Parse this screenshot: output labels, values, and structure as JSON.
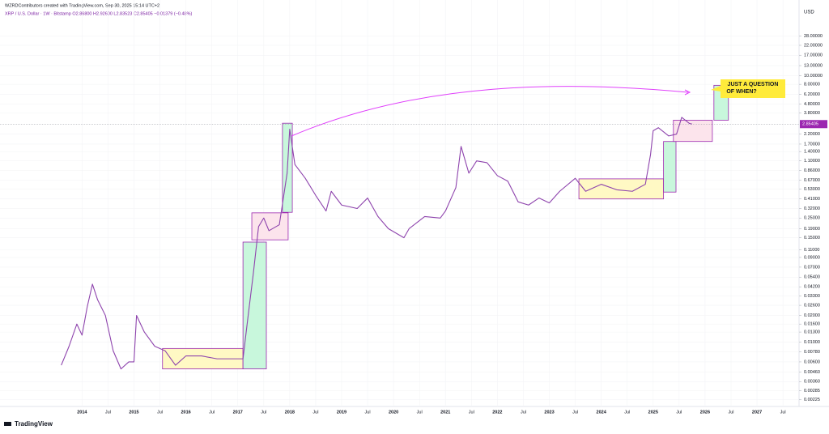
{
  "header": {
    "author": "WZRDContributors created with TradingView.com, Sep 30, 2025 15:14 UTC+2",
    "symbol": "XRP / U.S. Dollar · 1W · Bitstamp  O2.86800 H2.92600 L2.83523 C2.85405 −0.01379 (−0.48%)",
    "currency": "USD",
    "logo": "TradingView"
  },
  "chart_data": {
    "type": "line",
    "log_scale": true,
    "grid": true,
    "color": "#8e44ad",
    "x": [
      2013.6,
      2013.75,
      2013.9,
      2014.0,
      2014.1,
      2014.2,
      2014.3,
      2014.45,
      2014.6,
      2014.75,
      2014.9,
      2015.0,
      2015.05,
      2015.2,
      2015.4,
      2015.6,
      2015.8,
      2016.0,
      2016.3,
      2016.6,
      2016.9,
      2017.1,
      2017.2,
      2017.3,
      2017.4,
      2017.5,
      2017.6,
      2017.8,
      2017.95,
      2018.0,
      2018.1,
      2018.3,
      2018.5,
      2018.7,
      2018.8,
      2019.0,
      2019.3,
      2019.5,
      2019.7,
      2019.9,
      2020.2,
      2020.3,
      2020.6,
      2020.9,
      2021.0,
      2021.2,
      2021.3,
      2021.45,
      2021.6,
      2021.8,
      2022.0,
      2022.2,
      2022.4,
      2022.6,
      2022.8,
      2023.0,
      2023.2,
      2023.5,
      2023.7,
      2024.0,
      2024.3,
      2024.6,
      2024.85,
      2024.95,
      2025.0,
      2025.1,
      2025.3,
      2025.45,
      2025.55,
      2025.7,
      2025.75
    ],
    "values": [
      0.0055,
      0.009,
      0.016,
      0.012,
      0.025,
      0.045,
      0.03,
      0.02,
      0.008,
      0.005,
      0.006,
      0.006,
      0.02,
      0.013,
      0.009,
      0.008,
      0.0055,
      0.007,
      0.007,
      0.0065,
      0.0065,
      0.0065,
      0.02,
      0.06,
      0.2,
      0.25,
      0.18,
      0.21,
      0.8,
      2.5,
      1.0,
      0.7,
      0.45,
      0.3,
      0.5,
      0.35,
      0.32,
      0.42,
      0.26,
      0.19,
      0.15,
      0.19,
      0.26,
      0.25,
      0.3,
      0.55,
      1.6,
      0.8,
      1.1,
      1.05,
      0.75,
      0.65,
      0.38,
      0.35,
      0.42,
      0.37,
      0.5,
      0.7,
      0.5,
      0.6,
      0.52,
      0.5,
      0.6,
      1.3,
      2.4,
      2.6,
      2.1,
      2.2,
      3.4,
      2.9,
      2.85
    ],
    "last_price": 2.85405,
    "boxes": [
      {
        "x0": 2015.55,
        "x1": 2017.1,
        "low": 0.005,
        "high": 0.0085,
        "color": "#fff9c4"
      },
      {
        "x0": 2017.1,
        "x1": 2017.55,
        "low": 0.005,
        "high": 0.134,
        "color": "#c8f7dc"
      },
      {
        "x0": 2017.27,
        "x1": 2017.97,
        "low": 0.142,
        "high": 0.286,
        "color": "#fce4ec"
      },
      {
        "x0": 2017.86,
        "x1": 2018.05,
        "low": 0.29,
        "high": 2.92,
        "color": "#c8f7dc"
      },
      {
        "x0": 2023.57,
        "x1": 2025.2,
        "low": 0.41,
        "high": 0.69,
        "color": "#fff9c4"
      },
      {
        "x0": 2025.2,
        "x1": 2025.44,
        "low": 0.49,
        "high": 1.82,
        "color": "#c8f7dc"
      },
      {
        "x0": 2025.39,
        "x1": 2026.14,
        "low": 1.82,
        "high": 3.16,
        "color": "#fce4ec"
      },
      {
        "x0": 2026.17,
        "x1": 2026.45,
        "low": 3.16,
        "high": 7.8,
        "color": "#c8f7dc"
      }
    ],
    "annotation": [
      "JUST A QUESTION",
      "OF WHEN?"
    ],
    "xlim": [
      2012.42,
      2027.81
    ],
    "ylim": [
      0.00197,
      44.9
    ],
    "xticks": [
      2014,
      {
        "value": 2014.5,
        "label": "Jul"
      },
      2015,
      {
        "value": 2015.5,
        "label": "Jul"
      },
      2016,
      {
        "value": 2016.5,
        "label": "Jul"
      },
      2017,
      {
        "value": 2017.5,
        "label": "Jul"
      },
      2018,
      {
        "value": 2018.5,
        "label": "Jul"
      },
      2019,
      {
        "value": 2019.5,
        "label": "Jul"
      },
      2020,
      {
        "value": 2020.5,
        "label": "Jul"
      },
      2021,
      {
        "value": 2021.5,
        "label": "Jul"
      },
      2022,
      {
        "value": 2022.5,
        "label": "Jul"
      },
      2023,
      {
        "value": 2023.5,
        "label": "Jul"
      },
      2024,
      {
        "value": 2024.5,
        "label": "Jul"
      },
      2025,
      {
        "value": 2025.5,
        "label": "Jul"
      },
      2026,
      {
        "value": 2026.5,
        "label": "Jul"
      },
      2027,
      {
        "value": 2027.5,
        "label": "Jul"
      }
    ],
    "yticks": [
      {
        "value": 28,
        "label": "28.00000"
      },
      {
        "value": 22,
        "label": "22.00000"
      },
      {
        "value": 17,
        "label": "17.00000"
      },
      {
        "value": 13,
        "label": "13.00000"
      },
      {
        "value": 10,
        "label": "10.00000"
      },
      {
        "value": 8,
        "label": "8.00000"
      },
      {
        "value": 6.2,
        "label": "6.20000"
      },
      {
        "value": 4.8,
        "label": "4.80000"
      },
      {
        "value": 3.8,
        "label": "3.80000"
      },
      {
        "value": 2.2,
        "label": "2.20000"
      },
      {
        "value": 1.7,
        "label": "1.70000"
      },
      {
        "value": 1.4,
        "label": "1.40000"
      },
      {
        "value": 1.1,
        "label": "1.10000"
      },
      {
        "value": 0.86,
        "label": "0.86000"
      },
      {
        "value": 0.67,
        "label": "0.67000"
      },
      {
        "value": 0.53,
        "label": "0.53000"
      },
      {
        "value": 0.41,
        "label": "0.41000"
      },
      {
        "value": 0.32,
        "label": "0.32000"
      },
      {
        "value": 0.25,
        "label": "0.25000"
      },
      {
        "value": 0.19,
        "label": "0.19000"
      },
      {
        "value": 0.15,
        "label": "0.15000"
      },
      {
        "value": 0.11,
        "label": "0.11000"
      },
      {
        "value": 0.09,
        "label": "0.09000"
      },
      {
        "value": 0.07,
        "label": "0.07000"
      },
      {
        "value": 0.054,
        "label": "0.05400"
      },
      {
        "value": 0.042,
        "label": "0.04200"
      },
      {
        "value": 0.033,
        "label": "0.03300"
      },
      {
        "value": 0.026,
        "label": "0.02600"
      },
      {
        "value": 0.02,
        "label": "0.02000"
      },
      {
        "value": 0.016,
        "label": "0.01600"
      },
      {
        "value": 0.013,
        "label": "0.01300"
      },
      {
        "value": 0.01,
        "label": "0.01000"
      },
      {
        "value": 0.0078,
        "label": "0.00780"
      },
      {
        "value": 0.006,
        "label": "0.00600"
      },
      {
        "value": 0.0046,
        "label": "0.00460"
      },
      {
        "value": 0.0036,
        "label": "0.00360"
      },
      {
        "value": 0.00285,
        "label": "0.00285"
      },
      {
        "value": 0.00225,
        "label": "0.00225"
      }
    ]
  }
}
